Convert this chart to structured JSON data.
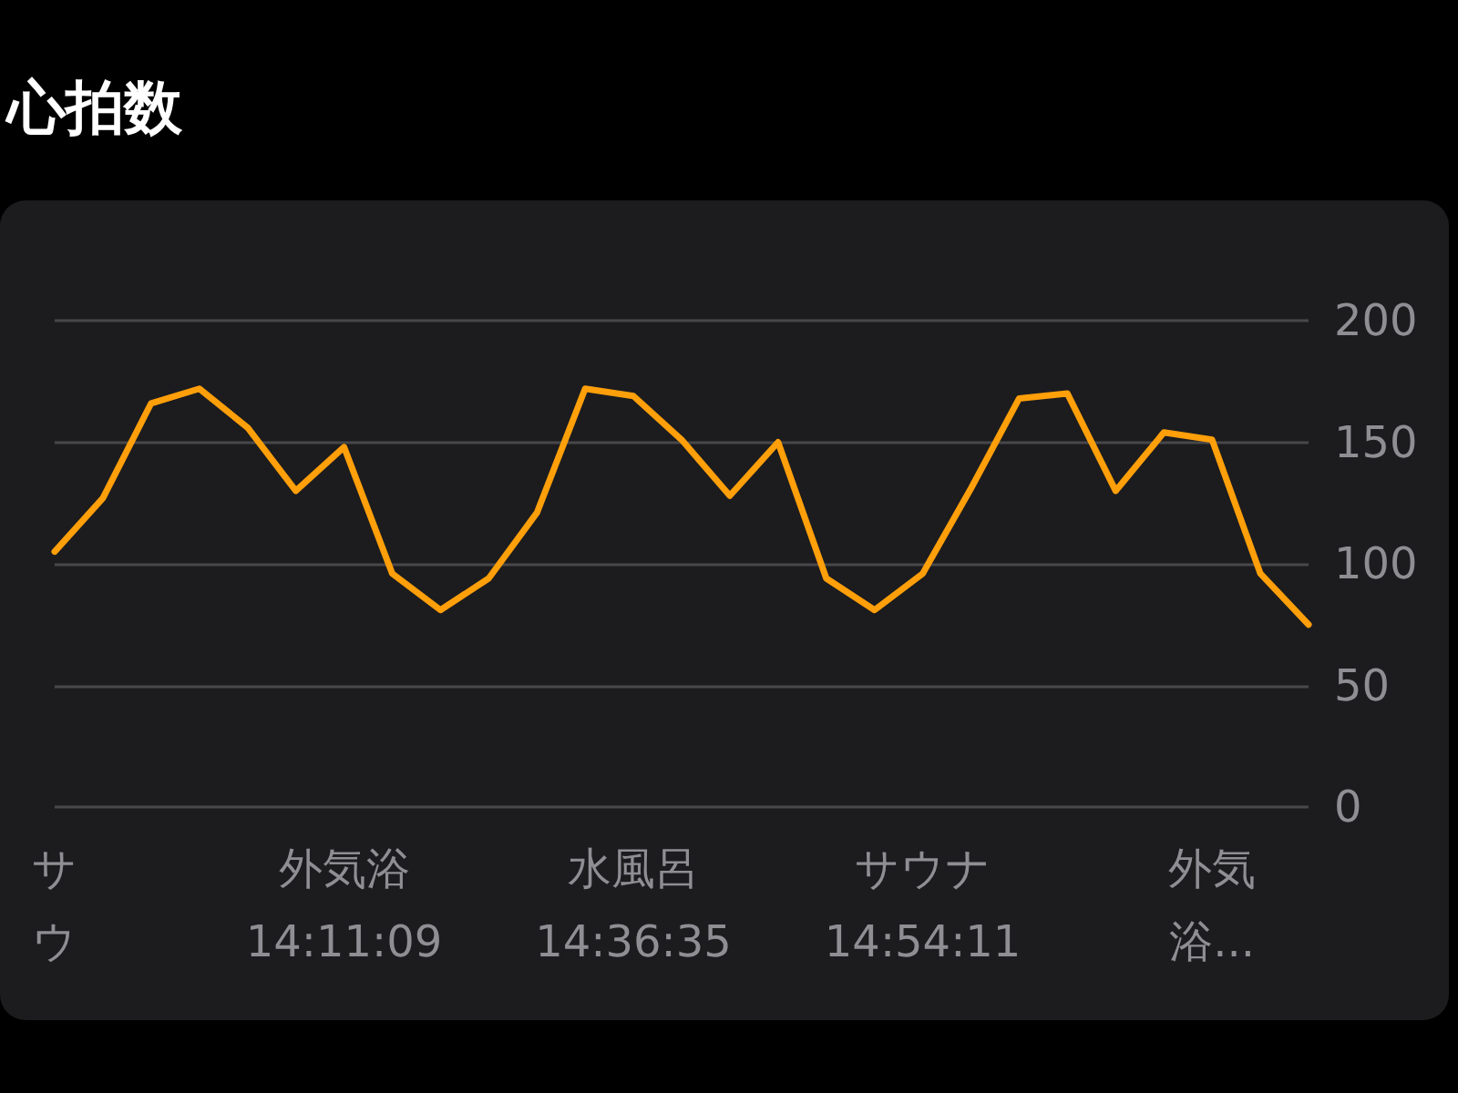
{
  "chart_data": {
    "type": "line",
    "title": "心拍数",
    "categories": [
      "サウ",
      null,
      null,
      null,
      null,
      null,
      "外気浴\n14:11:09",
      null,
      null,
      null,
      null,
      null,
      "水風呂\n14:36:35",
      null,
      null,
      null,
      null,
      null,
      "サウナ\n14:54:11",
      null,
      null,
      null,
      null,
      null,
      "外気浴...",
      null,
      null
    ],
    "series": [
      {
        "color": "#ff9f0a",
        "values": [
          105,
          127,
          166,
          172,
          156,
          130,
          148,
          96,
          81,
          94,
          121,
          172,
          169,
          151,
          128,
          150,
          94,
          81,
          96,
          131,
          168,
          170,
          130,
          154,
          151,
          96,
          75
        ]
      }
    ],
    "ylim": [
      0,
      200
    ],
    "yticks": [
      0,
      50,
      100,
      150,
      200
    ],
    "grid": "y",
    "marker": "none",
    "line_style": "solid"
  }
}
